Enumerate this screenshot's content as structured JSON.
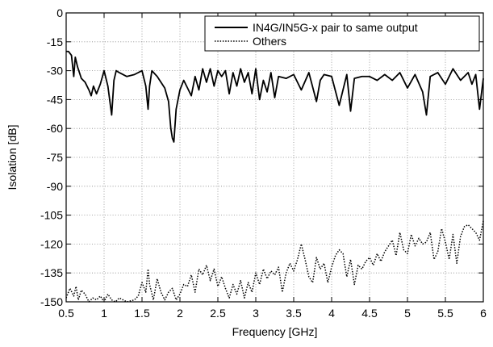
{
  "chart_data": {
    "type": "line",
    "title": "",
    "xlabel": "Frequency [GHz]",
    "ylabel": "Isolation [dB]",
    "xlim": [
      0.5,
      6
    ],
    "ylim": [
      -150,
      0
    ],
    "xticks": [
      0.5,
      1,
      1.5,
      2,
      2.5,
      3,
      3.5,
      4,
      4.5,
      5,
      5.5,
      6
    ],
    "xtick_labels": [
      "0.5",
      "1",
      "1.5",
      "2",
      "2.5",
      "3",
      "3.5",
      "4",
      "4.5",
      "5",
      "5.5",
      "6"
    ],
    "yticks": [
      0,
      -15,
      -30,
      -45,
      -60,
      -75,
      -90,
      -105,
      -120,
      -135,
      -150
    ],
    "ytick_labels": [
      "0",
      "-15",
      "-30",
      "-45",
      "-60",
      "-75",
      "-90",
      "-105",
      "-120",
      "-135",
      "-150"
    ],
    "grid": true,
    "legend_position": "top-right",
    "series": [
      {
        "name": "IN4G/IN5G-x pair to same output",
        "color": "#000000",
        "line_style": "solid",
        "x": [
          0.5,
          0.53,
          0.57,
          0.6,
          0.62,
          0.65,
          0.7,
          0.75,
          0.8,
          0.83,
          0.86,
          0.9,
          0.95,
          1.0,
          1.05,
          1.1,
          1.13,
          1.16,
          1.2,
          1.3,
          1.4,
          1.5,
          1.55,
          1.58,
          1.6,
          1.63,
          1.7,
          1.8,
          1.85,
          1.88,
          1.9,
          1.92,
          1.95,
          2.0,
          2.05,
          2.15,
          2.2,
          2.25,
          2.3,
          2.35,
          2.4,
          2.45,
          2.5,
          2.55,
          2.6,
          2.65,
          2.7,
          2.75,
          2.8,
          2.85,
          2.9,
          2.95,
          3.0,
          3.05,
          3.1,
          3.15,
          3.2,
          3.25,
          3.3,
          3.4,
          3.5,
          3.6,
          3.7,
          3.8,
          3.85,
          3.9,
          4.0,
          4.1,
          4.2,
          4.25,
          4.3,
          4.4,
          4.5,
          4.6,
          4.7,
          4.8,
          4.9,
          5.0,
          5.1,
          5.2,
          5.25,
          5.3,
          5.4,
          5.5,
          5.6,
          5.7,
          5.8,
          5.85,
          5.9,
          5.95,
          6.0
        ],
        "y": [
          -20,
          -20,
          -22,
          -33,
          -23,
          -28,
          -34,
          -36,
          -40,
          -43,
          -38,
          -42,
          -37,
          -30,
          -38,
          -53,
          -35,
          -30,
          -31,
          -33,
          -32,
          -30,
          -38,
          -50,
          -38,
          -30,
          -33,
          -39,
          -46,
          -60,
          -65,
          -67,
          -50,
          -40,
          -35,
          -43,
          -33,
          -40,
          -29,
          -36,
          -29,
          -38,
          -30,
          -33,
          -30,
          -42,
          -31,
          -38,
          -29,
          -36,
          -31,
          -42,
          -29,
          -45,
          -35,
          -41,
          -31,
          -44,
          -33,
          -34,
          -32,
          -40,
          -31,
          -46,
          -35,
          -32,
          -33,
          -48,
          -32,
          -51,
          -34,
          -33,
          -33,
          -35,
          -32,
          -35,
          -31,
          -39,
          -32,
          -41,
          -53,
          -33,
          -31,
          -37,
          -29,
          -35,
          -31,
          -37,
          -32,
          -50,
          -34
        ]
      },
      {
        "name": "Others",
        "color": "#000000",
        "line_style": "dotted",
        "x": [
          0.5,
          0.55,
          0.6,
          0.63,
          0.66,
          0.7,
          0.75,
          0.8,
          0.85,
          0.9,
          0.95,
          1.0,
          1.05,
          1.1,
          1.15,
          1.2,
          1.3,
          1.4,
          1.45,
          1.5,
          1.55,
          1.58,
          1.6,
          1.65,
          1.7,
          1.75,
          1.8,
          1.85,
          1.9,
          1.95,
          2.0,
          2.05,
          2.1,
          2.15,
          2.2,
          2.25,
          2.3,
          2.35,
          2.4,
          2.45,
          2.5,
          2.55,
          2.6,
          2.65,
          2.7,
          2.75,
          2.8,
          2.85,
          2.9,
          2.95,
          3.0,
          3.05,
          3.1,
          3.15,
          3.2,
          3.25,
          3.3,
          3.35,
          3.4,
          3.45,
          3.5,
          3.55,
          3.6,
          3.65,
          3.7,
          3.75,
          3.8,
          3.85,
          3.9,
          3.95,
          4.0,
          4.05,
          4.1,
          4.15,
          4.2,
          4.25,
          4.3,
          4.35,
          4.4,
          4.45,
          4.5,
          4.55,
          4.6,
          4.65,
          4.7,
          4.75,
          4.8,
          4.85,
          4.9,
          4.95,
          5.0,
          5.05,
          5.1,
          5.15,
          5.2,
          5.25,
          5.3,
          5.35,
          5.4,
          5.45,
          5.5,
          5.55,
          5.6,
          5.65,
          5.7,
          5.75,
          5.8,
          5.85,
          5.9,
          5.95,
          6.0
        ],
        "y": [
          -148,
          -143,
          -147,
          -142,
          -149,
          -144,
          -146,
          -150,
          -148,
          -149,
          -147,
          -150,
          -146,
          -149,
          -150,
          -148,
          -150,
          -149,
          -147,
          -140,
          -145,
          -133,
          -141,
          -149,
          -138,
          -145,
          -149,
          -145,
          -143,
          -149,
          -146,
          -141,
          -142,
          -136,
          -145,
          -133,
          -136,
          -131,
          -139,
          -133,
          -142,
          -137,
          -143,
          -148,
          -141,
          -146,
          -139,
          -148,
          -140,
          -145,
          -135,
          -141,
          -133,
          -138,
          -134,
          -136,
          -132,
          -145,
          -135,
          -130,
          -134,
          -128,
          -120,
          -128,
          -137,
          -140,
          -127,
          -133,
          -130,
          -140,
          -132,
          -126,
          -123,
          -125,
          -137,
          -128,
          -141,
          -131,
          -133,
          -129,
          -127,
          -131,
          -125,
          -129,
          -124,
          -121,
          -118,
          -126,
          -114,
          -123,
          -125,
          -115,
          -121,
          -117,
          -120,
          -119,
          -114,
          -128,
          -124,
          -112,
          -119,
          -128,
          -115,
          -130,
          -116,
          -111,
          -110,
          -112,
          -114,
          -118,
          -108
        ]
      }
    ]
  }
}
